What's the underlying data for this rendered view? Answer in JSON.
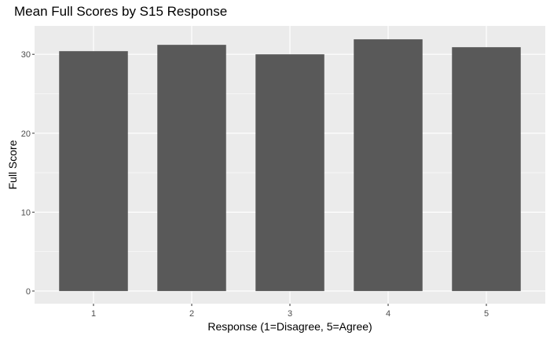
{
  "chart_data": {
    "type": "bar",
    "title": "Mean Full Scores by S15 Response",
    "xlabel": "Response (1=Disagree, 5=Agree)",
    "ylabel": "Full Score",
    "categories": [
      "1",
      "2",
      "3",
      "4",
      "5"
    ],
    "values": [
      30.4,
      31.2,
      30.0,
      31.9,
      30.9
    ],
    "ylim": [
      -1.6,
      33.6
    ],
    "yticks": [
      "0",
      "10",
      "20",
      "30"
    ],
    "grid": true,
    "legend": "none",
    "colors": {
      "bar": "#595959",
      "panel": "#ebebeb",
      "grid": "#ffffff"
    }
  }
}
